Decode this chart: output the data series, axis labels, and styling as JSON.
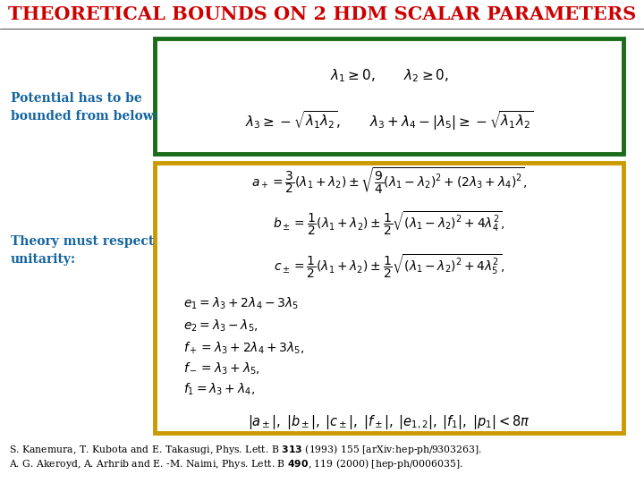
{
  "title": "THEORETICAL BOUNDS ON 2 HDM SCALAR PARAMETERS",
  "title_color": "#cc0000",
  "background_color": "#ffffff",
  "left_label1": "Potential has to be\nbounded from below:",
  "left_label2": "Theory must respect\nunitarity:",
  "left_label_color": "#1565a0",
  "box1_border": "#1a6b1a",
  "box2_border": "#cc9900",
  "box1_eq1": "$\\lambda_1 \\geq 0, \\qquad \\lambda_2 \\geq 0,$",
  "box1_eq2": "$\\lambda_3 \\geq -\\sqrt{\\lambda_1\\lambda_2}, \\qquad \\lambda_3 + \\lambda_4 - |\\lambda_5| \\geq -\\sqrt{\\lambda_1\\lambda_2}$",
  "box2_lines": [
    "$a_+ = \\dfrac{3}{2}(\\lambda_1 + \\lambda_2) \\pm \\sqrt{\\dfrac{9}{4}(\\lambda_1 - \\lambda_2)^2 + (2\\lambda_3 + \\lambda_4)^2},$",
    "$b_\\pm = \\dfrac{1}{2}(\\lambda_1 + \\lambda_2) \\pm \\dfrac{1}{2}\\sqrt{(\\lambda_1 - \\lambda_2)^2 + 4\\lambda_4^2},$",
    "$c_\\pm = \\dfrac{1}{2}(\\lambda_1 + \\lambda_2) \\pm \\dfrac{1}{2}\\sqrt{(\\lambda_1 - \\lambda_2)^2 + 4\\lambda_5^2},$",
    "$e_1 = \\lambda_3 + 2\\lambda_4 - 3\\lambda_5$",
    "$e_2 = \\lambda_3 - \\lambda_5,$",
    "$f_+ = \\lambda_3 + 2\\lambda_4 + 3\\lambda_5,$",
    "$f_- = \\lambda_3 + \\lambda_5,$",
    "$f_1 = \\lambda_3 + \\lambda_4,$",
    "$|a_\\pm|, \\; |b_\\pm|, \\; |c_\\pm|, \\; |f_\\pm|, \\; |e_{1,2}|, \\; |f_1|, \\; |p_1| < 8\\pi$"
  ],
  "ref1": "S. Kanemura, T. Kubota and E. Takasugi, Phys. Lett. B $\\mathbf{313}$ (1993) 155 [arXiv:hep-ph/9303263].",
  "ref2": "A. G. Akeroyd, A. Arhrib and E. -M. Naimi, Phys. Lett. B $\\mathbf{490}$, 119 (2000) [hep-ph/0006035]."
}
